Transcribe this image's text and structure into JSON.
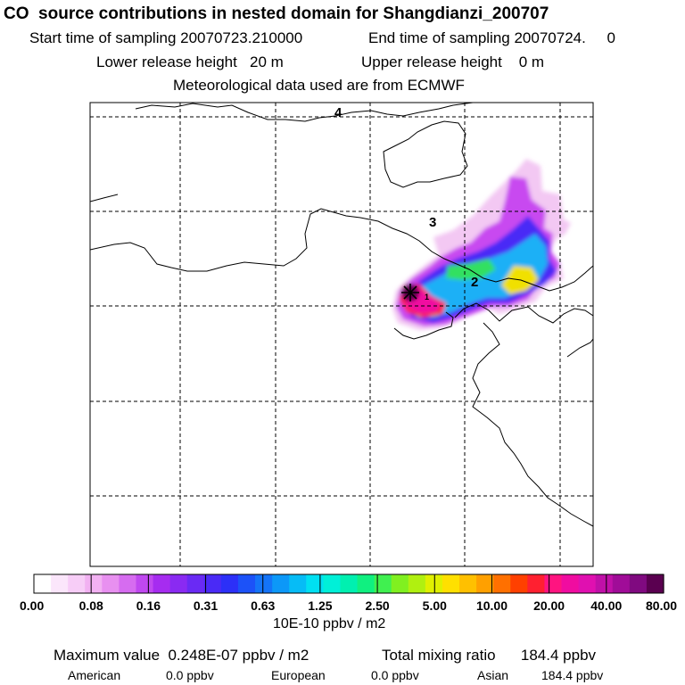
{
  "title": "CO  source contributions in nested domain for Shangdianzi_200707",
  "sampling": {
    "start": "Start time of sampling 20070723.210000",
    "end": "End time of sampling 20070724.     0"
  },
  "release": {
    "lower": "Lower release height   20 m",
    "upper": "Upper release height    0 m"
  },
  "met": "Meteorological data used are from ECMWF",
  "map": {
    "markers": [
      "4",
      "3",
      "2",
      "1"
    ],
    "receptor": "receptor-star-icon",
    "grid": "dashed",
    "palette": [
      "#ffffff",
      "#fbe6fb",
      "#f7cdf7",
      "#f2b1f2",
      "#e890f0",
      "#d66cf0",
      "#c048f0",
      "#a62cf0",
      "#8a2af2",
      "#6a2af4",
      "#4a2af6",
      "#2c30f8",
      "#1c52f8",
      "#1474f8",
      "#0c98f8",
      "#06bcf6",
      "#00e0f2",
      "#00f0d8",
      "#00f0b0",
      "#10f080",
      "#40f050",
      "#80f020",
      "#b0f010",
      "#e0f000",
      "#ffe000",
      "#ffc000",
      "#ffa000",
      "#ff7000",
      "#ff4000",
      "#ff2030",
      "#ff1480",
      "#f00ca0",
      "#e010b0",
      "#c010a8",
      "#a00c98",
      "#800a80",
      "#5a0050"
    ]
  },
  "colorbar": {
    "tick_labels": [
      "0.00",
      "0.08",
      "0.16",
      "0.31",
      "0.63",
      "1.25",
      "2.50",
      "5.00",
      "10.00",
      "20.00",
      "40.00",
      "80.00"
    ],
    "unit": "10E-10 ppbv / m2"
  },
  "stats": {
    "max": "Maximum value  0.248E-07 ppbv / m2",
    "total": "Total mixing ratio      184.4 ppbv",
    "american_label": "American",
    "american_value": "0.0 ppbv",
    "european_label": "European",
    "european_value": "0.0 ppbv",
    "asian_label": "Asian",
    "asian_value": "184.4 ppbv"
  }
}
